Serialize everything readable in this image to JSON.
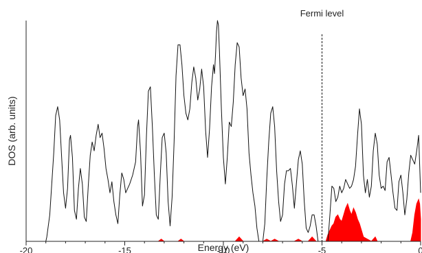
{
  "chart_data": {
    "type": "line",
    "title": "",
    "xlabel": "Energy (eV)",
    "ylabel": "DOS (arb. units)",
    "xlim": [
      -20,
      0
    ],
    "ylim": [
      0,
      1.0
    ],
    "xticks": [
      -20,
      -15,
      -10,
      -5,
      0
    ],
    "xtick_labels": [
      "-20",
      "-15",
      "-10",
      "-5",
      "0"
    ],
    "grid": false,
    "legend": "none",
    "annotations": [
      {
        "text": "Fermi level",
        "x": -5.0,
        "style": "dashed-vertical-line"
      }
    ],
    "series": [
      {
        "style": "line",
        "color": "#111111",
        "points": [
          [
            -20.0,
            0.0
          ],
          [
            -19.0,
            0.0
          ],
          [
            -18.95,
            0.02
          ],
          [
            -18.8,
            0.12
          ],
          [
            -18.6,
            0.4
          ],
          [
            -18.5,
            0.57
          ],
          [
            -18.4,
            0.61
          ],
          [
            -18.3,
            0.55
          ],
          [
            -18.2,
            0.38
          ],
          [
            -18.1,
            0.22
          ],
          [
            -18.0,
            0.15
          ],
          [
            -17.9,
            0.24
          ],
          [
            -17.8,
            0.46
          ],
          [
            -17.75,
            0.48
          ],
          [
            -17.65,
            0.38
          ],
          [
            -17.55,
            0.14
          ],
          [
            -17.45,
            0.1
          ],
          [
            -17.35,
            0.24
          ],
          [
            -17.25,
            0.33
          ],
          [
            -17.15,
            0.26
          ],
          [
            -17.05,
            0.11
          ],
          [
            -16.95,
            0.09
          ],
          [
            -16.85,
            0.25
          ],
          [
            -16.75,
            0.39
          ],
          [
            -16.65,
            0.45
          ],
          [
            -16.55,
            0.41
          ],
          [
            -16.45,
            0.48
          ],
          [
            -16.35,
            0.53
          ],
          [
            -16.25,
            0.47
          ],
          [
            -16.15,
            0.49
          ],
          [
            -16.05,
            0.42
          ],
          [
            -15.95,
            0.33
          ],
          [
            -15.85,
            0.28
          ],
          [
            -15.75,
            0.22
          ],
          [
            -15.65,
            0.27
          ],
          [
            -15.55,
            0.18
          ],
          [
            -15.45,
            0.12
          ],
          [
            -15.35,
            0.08
          ],
          [
            -15.25,
            0.21
          ],
          [
            -15.15,
            0.31
          ],
          [
            -15.05,
            0.28
          ],
          [
            -14.95,
            0.22
          ],
          [
            -14.85,
            0.24
          ],
          [
            -14.75,
            0.26
          ],
          [
            -14.6,
            0.3
          ],
          [
            -14.45,
            0.36
          ],
          [
            -14.35,
            0.52
          ],
          [
            -14.3,
            0.55
          ],
          [
            -14.2,
            0.4
          ],
          [
            -14.1,
            0.16
          ],
          [
            -14.0,
            0.21
          ],
          [
            -13.9,
            0.48
          ],
          [
            -13.8,
            0.68
          ],
          [
            -13.7,
            0.7
          ],
          [
            -13.6,
            0.52
          ],
          [
            -13.5,
            0.3
          ],
          [
            -13.4,
            0.12
          ],
          [
            -13.3,
            0.1
          ],
          [
            -13.2,
            0.3
          ],
          [
            -13.1,
            0.47
          ],
          [
            -13.0,
            0.49
          ],
          [
            -12.9,
            0.4
          ],
          [
            -12.8,
            0.18
          ],
          [
            -12.7,
            0.07
          ],
          [
            -12.6,
            0.2
          ],
          [
            -12.5,
            0.45
          ],
          [
            -12.4,
            0.75
          ],
          [
            -12.3,
            0.89
          ],
          [
            -12.2,
            0.89
          ],
          [
            -12.1,
            0.8
          ],
          [
            -12.0,
            0.66
          ],
          [
            -11.9,
            0.58
          ],
          [
            -11.8,
            0.55
          ],
          [
            -11.7,
            0.6
          ],
          [
            -11.6,
            0.72
          ],
          [
            -11.5,
            0.79
          ],
          [
            -11.4,
            0.74
          ],
          [
            -11.3,
            0.64
          ],
          [
            -11.2,
            0.69
          ],
          [
            -11.1,
            0.78
          ],
          [
            -11.0,
            0.7
          ],
          [
            -10.9,
            0.5
          ],
          [
            -10.8,
            0.38
          ],
          [
            -10.7,
            0.51
          ],
          [
            -10.6,
            0.7
          ],
          [
            -10.5,
            0.8
          ],
          [
            -10.45,
            0.76
          ],
          [
            -10.4,
            0.84
          ],
          [
            -10.35,
            0.95
          ],
          [
            -10.3,
            1.0
          ],
          [
            -10.25,
            0.98
          ],
          [
            -10.2,
            0.86
          ],
          [
            -10.1,
            0.6
          ],
          [
            -10.0,
            0.38
          ],
          [
            -9.9,
            0.26
          ],
          [
            -9.8,
            0.38
          ],
          [
            -9.7,
            0.54
          ],
          [
            -9.6,
            0.52
          ],
          [
            -9.5,
            0.63
          ],
          [
            -9.4,
            0.8
          ],
          [
            -9.3,
            0.9
          ],
          [
            -9.2,
            0.88
          ],
          [
            -9.1,
            0.74
          ],
          [
            -9.0,
            0.66
          ],
          [
            -8.9,
            0.69
          ],
          [
            -8.8,
            0.6
          ],
          [
            -8.7,
            0.4
          ],
          [
            -8.6,
            0.3
          ],
          [
            -8.5,
            0.22
          ],
          [
            -8.4,
            0.16
          ],
          [
            -8.3,
            0.06
          ],
          [
            -8.2,
            0.0
          ],
          [
            -8.0,
            0.0
          ],
          [
            -7.9,
            0.08
          ],
          [
            -7.8,
            0.28
          ],
          [
            -7.7,
            0.45
          ],
          [
            -7.6,
            0.58
          ],
          [
            -7.5,
            0.61
          ],
          [
            -7.4,
            0.52
          ],
          [
            -7.3,
            0.32
          ],
          [
            -7.2,
            0.18
          ],
          [
            -7.1,
            0.09
          ],
          [
            -7.0,
            0.12
          ],
          [
            -6.9,
            0.26
          ],
          [
            -6.8,
            0.32
          ],
          [
            -6.7,
            0.32
          ],
          [
            -6.6,
            0.33
          ],
          [
            -6.5,
            0.25
          ],
          [
            -6.4,
            0.15
          ],
          [
            -6.3,
            0.26
          ],
          [
            -6.2,
            0.37
          ],
          [
            -6.1,
            0.41
          ],
          [
            -6.0,
            0.35
          ],
          [
            -5.9,
            0.18
          ],
          [
            -5.8,
            0.06
          ],
          [
            -5.7,
            0.04
          ],
          [
            -5.6,
            0.07
          ],
          [
            -5.5,
            0.12
          ],
          [
            -5.4,
            0.12
          ],
          [
            -5.3,
            0.07
          ],
          [
            -5.2,
            0.0
          ],
          [
            -4.7,
            0.0
          ],
          [
            -4.6,
            0.12
          ],
          [
            -4.5,
            0.25
          ],
          [
            -4.4,
            0.24
          ],
          [
            -4.3,
            0.18
          ],
          [
            -4.2,
            0.2
          ],
          [
            -4.1,
            0.25
          ],
          [
            -4.0,
            0.22
          ],
          [
            -3.9,
            0.24
          ],
          [
            -3.8,
            0.28
          ],
          [
            -3.7,
            0.26
          ],
          [
            -3.6,
            0.24
          ],
          [
            -3.5,
            0.25
          ],
          [
            -3.4,
            0.28
          ],
          [
            -3.3,
            0.34
          ],
          [
            -3.2,
            0.48
          ],
          [
            -3.1,
            0.6
          ],
          [
            -3.0,
            0.53
          ],
          [
            -2.9,
            0.3
          ],
          [
            -2.8,
            0.22
          ],
          [
            -2.7,
            0.28
          ],
          [
            -2.6,
            0.2
          ],
          [
            -2.5,
            0.25
          ],
          [
            -2.4,
            0.41
          ],
          [
            -2.3,
            0.49
          ],
          [
            -2.2,
            0.44
          ],
          [
            -2.1,
            0.3
          ],
          [
            -2.0,
            0.24
          ],
          [
            -1.9,
            0.25
          ],
          [
            -1.8,
            0.23
          ],
          [
            -1.7,
            0.36
          ],
          [
            -1.6,
            0.38
          ],
          [
            -1.5,
            0.3
          ],
          [
            -1.4,
            0.22
          ],
          [
            -1.3,
            0.15
          ],
          [
            -1.2,
            0.14
          ],
          [
            -1.1,
            0.27
          ],
          [
            -1.0,
            0.3
          ],
          [
            -0.9,
            0.22
          ],
          [
            -0.8,
            0.12
          ],
          [
            -0.7,
            0.19
          ],
          [
            -0.6,
            0.31
          ],
          [
            -0.5,
            0.39
          ],
          [
            -0.4,
            0.37
          ],
          [
            -0.3,
            0.35
          ],
          [
            -0.2,
            0.41
          ],
          [
            -0.1,
            0.48
          ],
          [
            0.0,
            0.22
          ]
        ]
      },
      {
        "style": "filled-area",
        "color": "#ff0000",
        "points": [
          [
            -20.0,
            0.0
          ],
          [
            -13.3,
            0.0
          ],
          [
            -13.15,
            0.01
          ],
          [
            -13.0,
            0.0
          ],
          [
            -12.3,
            0.0
          ],
          [
            -12.15,
            0.01
          ],
          [
            -12.0,
            0.0
          ],
          [
            -9.4,
            0.0
          ],
          [
            -9.2,
            0.02
          ],
          [
            -9.0,
            0.0
          ],
          [
            -8.0,
            0.0
          ],
          [
            -7.8,
            0.01
          ],
          [
            -7.6,
            0.0
          ],
          [
            -7.4,
            0.01
          ],
          [
            -7.2,
            0.0
          ],
          [
            -6.4,
            0.0
          ],
          [
            -6.2,
            0.01
          ],
          [
            -6.0,
            0.0
          ],
          [
            -5.7,
            0.0
          ],
          [
            -5.5,
            0.02
          ],
          [
            -5.3,
            0.0
          ],
          [
            -4.8,
            0.0
          ],
          [
            -4.7,
            0.03
          ],
          [
            -4.6,
            0.05
          ],
          [
            -4.5,
            0.07
          ],
          [
            -4.4,
            0.08
          ],
          [
            -4.3,
            0.11
          ],
          [
            -4.2,
            0.12
          ],
          [
            -4.1,
            0.1
          ],
          [
            -4.0,
            0.09
          ],
          [
            -3.9,
            0.12
          ],
          [
            -3.8,
            0.15
          ],
          [
            -3.7,
            0.17
          ],
          [
            -3.6,
            0.14
          ],
          [
            -3.5,
            0.12
          ],
          [
            -3.4,
            0.15
          ],
          [
            -3.3,
            0.13
          ],
          [
            -3.2,
            0.1
          ],
          [
            -3.1,
            0.08
          ],
          [
            -3.0,
            0.05
          ],
          [
            -2.9,
            0.02
          ],
          [
            -2.7,
            0.01
          ],
          [
            -2.5,
            0.0
          ],
          [
            -2.3,
            0.02
          ],
          [
            -2.2,
            0.0
          ],
          [
            -0.5,
            0.0
          ],
          [
            -0.4,
            0.04
          ],
          [
            -0.3,
            0.12
          ],
          [
            -0.2,
            0.17
          ],
          [
            -0.1,
            0.19
          ],
          [
            -0.05,
            0.17
          ],
          [
            0.0,
            0.1
          ]
        ]
      }
    ]
  }
}
